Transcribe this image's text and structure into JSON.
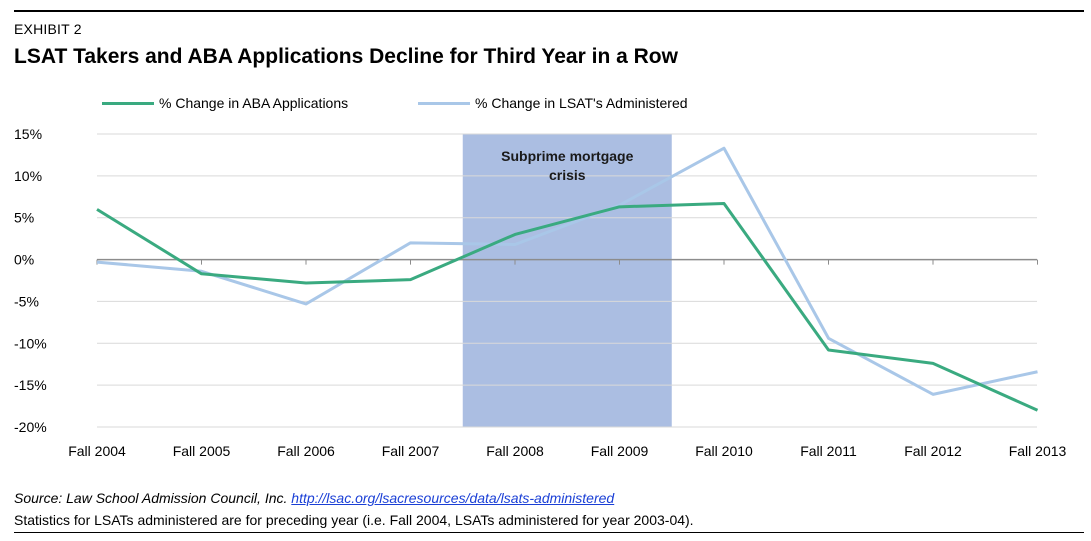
{
  "header": {
    "exhibit_label": "EXHIBIT 2",
    "title": "LSAT Takers and ABA Applications Decline for Third Year in a Row"
  },
  "chart_data": {
    "type": "line",
    "categories": [
      "Fall 2004",
      "Fall 2005",
      "Fall 2006",
      "Fall 2007",
      "Fall 2008",
      "Fall 2009",
      "Fall 2010",
      "Fall 2011",
      "Fall 2012",
      "Fall 2013"
    ],
    "series": [
      {
        "name": "% Change in ABA Applications",
        "color": "#3aaa80",
        "values": [
          6.0,
          -1.7,
          -2.8,
          -2.4,
          3.0,
          6.3,
          6.7,
          -10.8,
          -12.4,
          -18.0
        ]
      },
      {
        "name": "% Change in LSAT's Administered",
        "color": "#a9c7e8",
        "values": [
          -0.3,
          -1.4,
          -5.3,
          2.0,
          1.8,
          6.5,
          13.3,
          -9.4,
          -16.1,
          -13.4
        ]
      }
    ],
    "ylim": [
      -20,
      15
    ],
    "yticks": [
      15,
      10,
      5,
      0,
      -5,
      -10,
      -15,
      -20
    ],
    "ytick_labels": [
      "15%",
      "10%",
      "5%",
      "0%",
      "-5%",
      "-10%",
      "-15%",
      "-20%"
    ],
    "xlabel": "",
    "ylabel": "",
    "grid": true,
    "legend_position": "top",
    "shaded_region": {
      "from_category": "Fall 2008",
      "to_category": "Fall 2009",
      "label_line1": "Subprime mortgage",
      "label_line2": "crisis",
      "color": "#8fa8d8"
    }
  },
  "footer": {
    "source_prefix": "Source: Law School Admission Council, Inc. ",
    "source_link": "http://lsac.org/lsacresources/data/lsats-administered",
    "note": "Statistics for LSATs administered are for preceding year (i.e. Fall 2004, LSATs administered for year 2003-04)."
  }
}
